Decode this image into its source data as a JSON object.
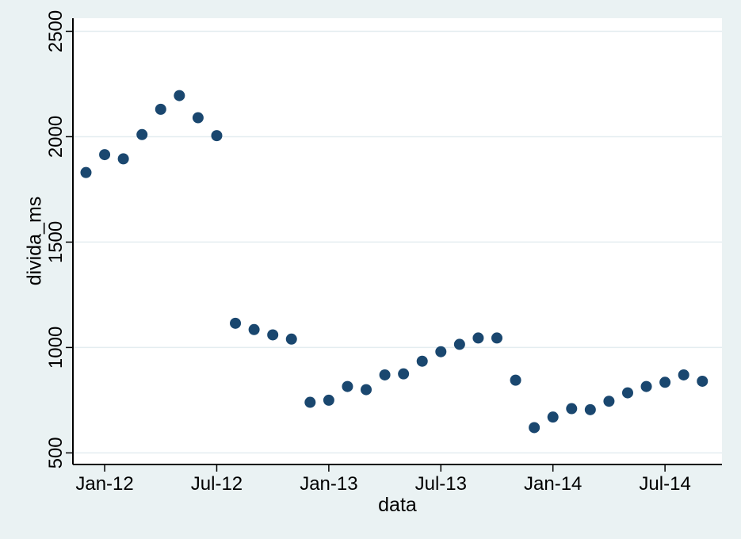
{
  "figure": {
    "background_color": "#eaf2f3",
    "plot_background_color": "#ffffff",
    "grid_color": "#e4edf0",
    "axis_color": "#000000",
    "marker_color": "#1a476f",
    "marker_radius": 7
  },
  "chart_data": {
    "type": "scatter",
    "title": "",
    "xlabel": "data",
    "ylabel": "divida_ms",
    "legend": "none",
    "grid": "horizontal",
    "x_tick_labels": [
      "Jan-12",
      "Jul-12",
      "Jan-13",
      "Jul-13",
      "Jan-14",
      "Jul-14"
    ],
    "x_tick_month_index": [
      1,
      7,
      13,
      19,
      25,
      31
    ],
    "y_ticks": [
      500,
      1000,
      1500,
      2000,
      2500
    ],
    "xlim": [
      -0.7,
      34.05
    ],
    "ylim": [
      445,
      2562
    ],
    "categories": [
      "Dec-11",
      "Jan-12",
      "Feb-12",
      "Mar-12",
      "Apr-12",
      "May-12",
      "Jun-12",
      "Jul-12",
      "Aug-12",
      "Sep-12",
      "Oct-12",
      "Nov-12",
      "Dec-12",
      "Jan-13",
      "Feb-13",
      "Mar-13",
      "Apr-13",
      "May-13",
      "Jun-13",
      "Jul-13",
      "Aug-13",
      "Sep-13",
      "Oct-13",
      "Nov-13",
      "Dec-13",
      "Jan-14",
      "Feb-14",
      "Mar-14",
      "Apr-14",
      "May-14",
      "Jun-14",
      "Jul-14",
      "Aug-14",
      "Sep-14"
    ],
    "values": [
      1830,
      1915,
      1895,
      2010,
      2130,
      2195,
      2090,
      2005,
      1115,
      1085,
      1060,
      1040,
      740,
      750,
      815,
      800,
      870,
      875,
      935,
      980,
      1015,
      1045,
      1045,
      845,
      620,
      670,
      710,
      705,
      745,
      785,
      815,
      835,
      870,
      840
    ]
  }
}
